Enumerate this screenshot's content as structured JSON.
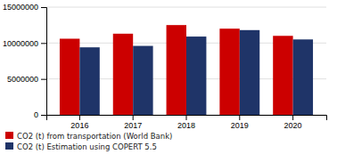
{
  "chart_data": {
    "type": "bar",
    "categories": [
      "2016",
      "2017",
      "2018",
      "2019",
      "2020"
    ],
    "series": [
      {
        "name": "CO2 (t) from transportation (World Bank)",
        "color": "#cc0000",
        "values": [
          10600000,
          11300000,
          12500000,
          12000000,
          11000000
        ]
      },
      {
        "name": "CO2 (t) Estimation using COPERT 5.5",
        "color": "#1f3468",
        "values": [
          9400000,
          9600000,
          10900000,
          11800000,
          10500000
        ]
      }
    ],
    "ylim": [
      0,
      15000000
    ],
    "yticks": [
      0,
      5000000,
      10000000,
      15000000
    ],
    "grid": true,
    "legend": "bottom-left"
  }
}
